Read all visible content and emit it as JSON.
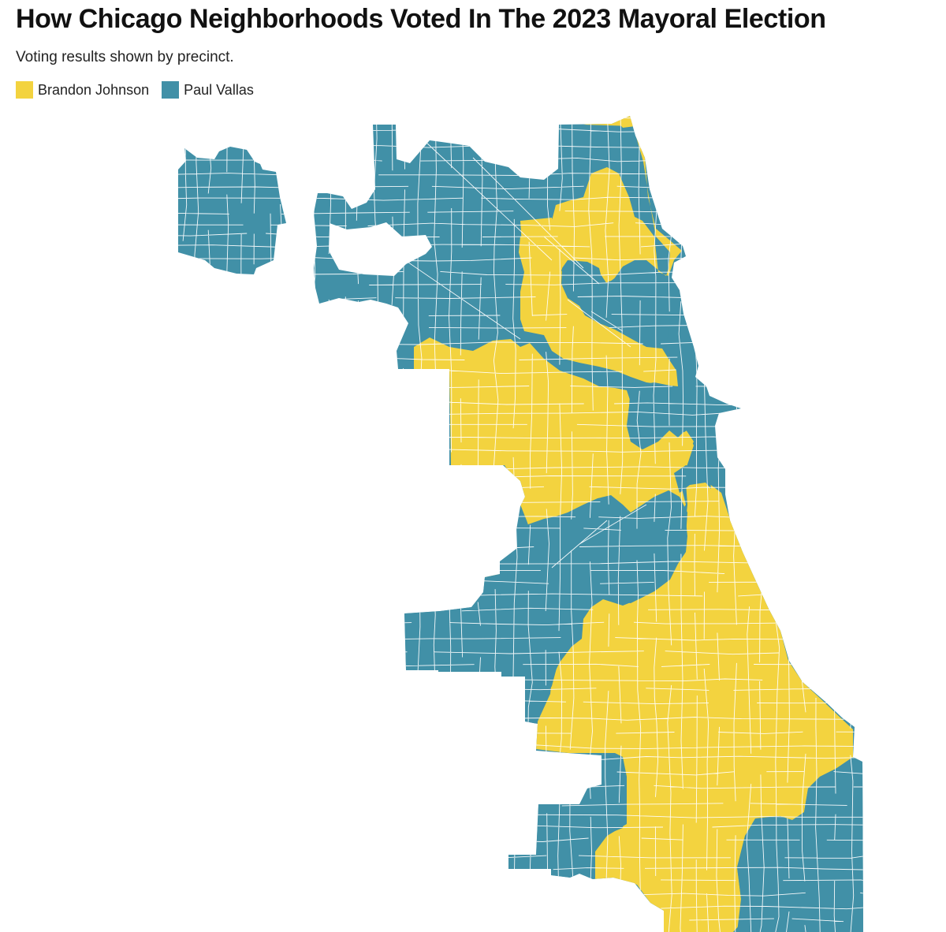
{
  "header": {
    "title": "How Chicago Neighborhoods Voted In The 2023 Mayoral Election",
    "subtitle": "Voting results shown by precinct."
  },
  "legend": {
    "items": [
      {
        "label": "Brandon Johnson",
        "color": "#f3d33f"
      },
      {
        "label": "Paul Vallas",
        "color": "#4190a7"
      }
    ]
  },
  "map": {
    "candidates": {
      "johnson": {
        "name": "Brandon Johnson",
        "color": "#f3d33f"
      },
      "vallas": {
        "name": "Paul Vallas",
        "color": "#4190a7"
      }
    },
    "precinct_border_color": "#ffffff"
  }
}
